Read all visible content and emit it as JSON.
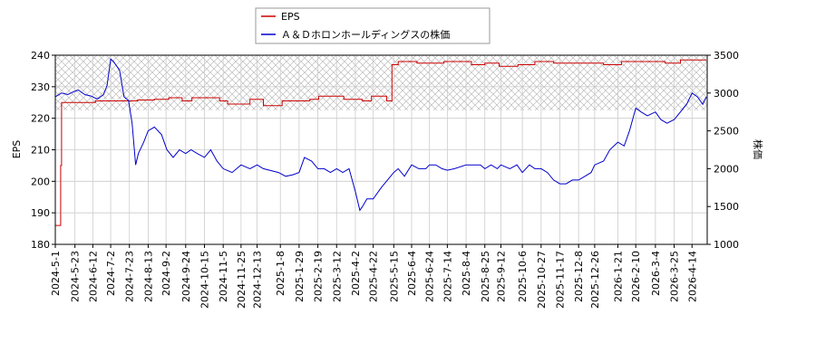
{
  "chart_data": {
    "type": "line",
    "legend": {
      "placement": "top-center",
      "entries": [
        {
          "label": "EPS",
          "color": "#cc0000"
        },
        {
          "label": "Ａ＆Ｄホロンホールディングスの株価",
          "color": "#0000cc"
        }
      ]
    },
    "ylabel_left": "EPS",
    "ylabel_right": "株価",
    "ylim_left": [
      180,
      240
    ],
    "ylim_right": [
      1000,
      3500
    ],
    "yticks_left": [
      "180",
      "190",
      "200",
      "210",
      "220",
      "230",
      "240"
    ],
    "yticks_right": [
      "1000",
      "1500",
      "2000",
      "2500",
      "3000",
      "3500"
    ],
    "x_range": [
      "2024-5-1",
      "2026-5-1"
    ],
    "xtick_labels": [
      "2024-5-1",
      "2024-5-23",
      "2024-6-12",
      "2024-7-2",
      "2024-7-23",
      "2024-8-13",
      "2024-9-2",
      "2024-9-24",
      "2024-10-15",
      "2024-11-5",
      "2024-11-25",
      "2024-12-13",
      "2025-1-8",
      "2025-1-29",
      "2025-2-19",
      "2025-3-12",
      "2025-4-2",
      "2025-4-22",
      "2025-5-15",
      "2025-6-4",
      "2025-6-24",
      "2025-7-14",
      "2025-8-4",
      "2025-8-25",
      "2025-9-12",
      "2025-10-6",
      "2025-10-27",
      "2025-11-17",
      "2025-12-8",
      "2025-12-26",
      "2026-1-21",
      "2026-2-10",
      "2026-3-4",
      "2026-3-25",
      "2026-4-14"
    ],
    "grid": true,
    "series": [
      {
        "name": "EPS",
        "axis": "left",
        "color": "#cc0000",
        "points": [
          [
            "2024-5-1",
            186
          ],
          [
            "2024-5-6",
            186
          ],
          [
            "2024-5-7",
            205
          ],
          [
            "2024-5-8",
            225
          ],
          [
            "2024-6-15",
            225.5
          ],
          [
            "2024-7-10",
            225.5
          ],
          [
            "2024-8-1",
            225.8
          ],
          [
            "2024-8-20",
            226
          ],
          [
            "2024-9-5",
            226.5
          ],
          [
            "2024-9-20",
            225.5
          ],
          [
            "2024-10-1",
            226.5
          ],
          [
            "2024-11-1",
            225.5
          ],
          [
            "2024-11-10",
            224.5
          ],
          [
            "2024-11-25",
            224.5
          ],
          [
            "2024-12-5",
            226
          ],
          [
            "2024-12-20",
            224
          ],
          [
            "2025-1-10",
            225.5
          ],
          [
            "2025-2-10",
            226
          ],
          [
            "2025-2-20",
            227
          ],
          [
            "2025-3-10",
            227
          ],
          [
            "2025-3-20",
            226
          ],
          [
            "2025-4-10",
            225.5
          ],
          [
            "2025-4-20",
            227
          ],
          [
            "2025-5-7",
            225.5
          ],
          [
            "2025-5-12",
            225.5
          ],
          [
            "2025-5-13",
            237
          ],
          [
            "2025-5-20",
            238
          ],
          [
            "2025-6-10",
            237.5
          ],
          [
            "2025-7-10",
            238
          ],
          [
            "2025-8-10",
            237
          ],
          [
            "2025-8-25",
            237.5
          ],
          [
            "2025-9-10",
            236.5
          ],
          [
            "2025-10-1",
            237
          ],
          [
            "2025-10-20",
            238
          ],
          [
            "2025-11-10",
            237.5
          ],
          [
            "2025-12-10",
            237.5
          ],
          [
            "2026-1-5",
            237
          ],
          [
            "2026-1-25",
            238
          ],
          [
            "2026-2-20",
            238
          ],
          [
            "2026-3-15",
            237.5
          ],
          [
            "2026-4-1",
            238.5
          ],
          [
            "2026-4-30",
            238.5
          ]
        ]
      },
      {
        "name": "Ａ＆Ｄホロンホールディングスの株価",
        "axis": "right",
        "color": "#0000cc",
        "points": [
          [
            "2024-5-1",
            2950
          ],
          [
            "2024-5-8",
            3000
          ],
          [
            "2024-5-15",
            2980
          ],
          [
            "2024-5-22",
            3020
          ],
          [
            "2024-5-27",
            3040
          ],
          [
            "2024-6-3",
            2980
          ],
          [
            "2024-6-10",
            2960
          ],
          [
            "2024-6-17",
            2920
          ],
          [
            "2024-6-24",
            2980
          ],
          [
            "2024-6-28",
            3100
          ],
          [
            "2024-7-2",
            3450
          ],
          [
            "2024-7-5",
            3420
          ],
          [
            "2024-7-12",
            3300
          ],
          [
            "2024-7-17",
            2950
          ],
          [
            "2024-7-22",
            2900
          ],
          [
            "2024-7-26",
            2600
          ],
          [
            "2024-7-30",
            2050
          ],
          [
            "2024-8-2",
            2200
          ],
          [
            "2024-8-8",
            2350
          ],
          [
            "2024-8-13",
            2500
          ],
          [
            "2024-8-20",
            2550
          ],
          [
            "2024-8-28",
            2450
          ],
          [
            "2024-9-3",
            2250
          ],
          [
            "2024-9-10",
            2150
          ],
          [
            "2024-9-17",
            2250
          ],
          [
            "2024-9-24",
            2200
          ],
          [
            "2024-9-30",
            2250
          ],
          [
            "2024-10-7",
            2200
          ],
          [
            "2024-10-15",
            2150
          ],
          [
            "2024-10-22",
            2250
          ],
          [
            "2024-10-29",
            2100
          ],
          [
            "2024-11-5",
            2000
          ],
          [
            "2024-11-15",
            1950
          ],
          [
            "2024-11-25",
            2050
          ],
          [
            "2024-12-5",
            2000
          ],
          [
            "2024-12-13",
            2050
          ],
          [
            "2024-12-20",
            2000
          ],
          [
            "2025-1-6",
            1950
          ],
          [
            "2025-1-14",
            1900
          ],
          [
            "2025-1-22",
            1920
          ],
          [
            "2025-1-29",
            1950
          ],
          [
            "2025-2-4",
            2150
          ],
          [
            "2025-2-12",
            2100
          ],
          [
            "2025-2-19",
            2000
          ],
          [
            "2025-2-26",
            2000
          ],
          [
            "2025-3-5",
            1950
          ],
          [
            "2025-3-12",
            2000
          ],
          [
            "2025-3-19",
            1950
          ],
          [
            "2025-3-26",
            2000
          ],
          [
            "2025-4-2",
            1700
          ],
          [
            "2025-4-7",
            1450
          ],
          [
            "2025-4-10",
            1500
          ],
          [
            "2025-4-15",
            1600
          ],
          [
            "2025-4-22",
            1600
          ],
          [
            "2025-5-1",
            1750
          ],
          [
            "2025-5-8",
            1850
          ],
          [
            "2025-5-15",
            1950
          ],
          [
            "2025-5-20",
            2000
          ],
          [
            "2025-5-27",
            1900
          ],
          [
            "2025-6-4",
            2050
          ],
          [
            "2025-6-12",
            2000
          ],
          [
            "2025-6-20",
            2000
          ],
          [
            "2025-6-24",
            2050
          ],
          [
            "2025-7-1",
            2050
          ],
          [
            "2025-7-8",
            2000
          ],
          [
            "2025-7-14",
            1980
          ],
          [
            "2025-7-22",
            2000
          ],
          [
            "2025-8-4",
            2050
          ],
          [
            "2025-8-12",
            2050
          ],
          [
            "2025-8-20",
            2050
          ],
          [
            "2025-8-25",
            2000
          ],
          [
            "2025-9-1",
            2050
          ],
          [
            "2025-9-8",
            2000
          ],
          [
            "2025-9-12",
            2050
          ],
          [
            "2025-9-22",
            2000
          ],
          [
            "2025-9-30",
            2050
          ],
          [
            "2025-10-6",
            1950
          ],
          [
            "2025-10-14",
            2050
          ],
          [
            "2025-10-20",
            2000
          ],
          [
            "2025-10-27",
            2000
          ],
          [
            "2025-11-3",
            1950
          ],
          [
            "2025-11-10",
            1850
          ],
          [
            "2025-11-17",
            1800
          ],
          [
            "2025-11-24",
            1800
          ],
          [
            "2025-12-1",
            1850
          ],
          [
            "2025-12-8",
            1850
          ],
          [
            "2025-12-15",
            1900
          ],
          [
            "2025-12-22",
            1950
          ],
          [
            "2025-12-26",
            2050
          ],
          [
            "2026-1-5",
            2100
          ],
          [
            "2026-1-12",
            2250
          ],
          [
            "2026-1-21",
            2350
          ],
          [
            "2026-1-28",
            2300
          ],
          [
            "2026-2-3",
            2500
          ],
          [
            "2026-2-10",
            2800
          ],
          [
            "2026-2-16",
            2750
          ],
          [
            "2026-2-23",
            2700
          ],
          [
            "2026-3-4",
            2750
          ],
          [
            "2026-3-10",
            2650
          ],
          [
            "2026-3-17",
            2600
          ],
          [
            "2026-3-25",
            2650
          ],
          [
            "2026-4-1",
            2750
          ],
          [
            "2026-4-8",
            2850
          ],
          [
            "2026-4-14",
            3000
          ],
          [
            "2026-4-20",
            2950
          ],
          [
            "2026-4-26",
            2850
          ],
          [
            "2026-4-30",
            2950
          ]
        ]
      }
    ]
  }
}
